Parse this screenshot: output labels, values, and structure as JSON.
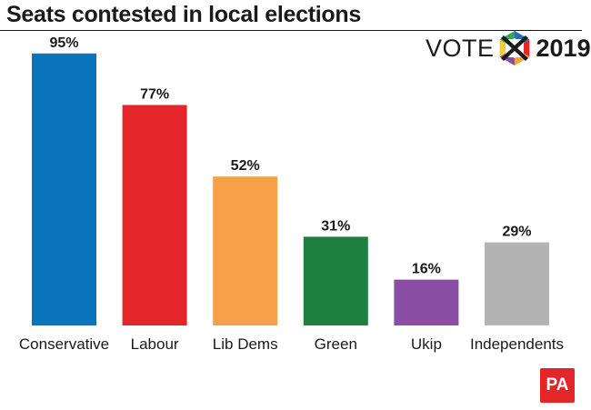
{
  "header": {
    "title": "Seats contested in local elections"
  },
  "logo": {
    "vote_word": "VOTE",
    "year": "2019",
    "mark_icon": "ballot-x-icon",
    "mark_colors": [
      "#2a6db5",
      "#e4262b",
      "#f7a239",
      "#8b4ca3",
      "#f0cf36",
      "#3aa655"
    ]
  },
  "chart_data": {
    "type": "bar",
    "title": "Seats contested in local elections",
    "xlabel": "",
    "ylabel": "",
    "ylim": [
      0,
      100
    ],
    "grid": false,
    "unit": "%",
    "categories": [
      "Conservative",
      "Labour",
      "Lib Dems",
      "Green",
      "Ukip",
      "Independents"
    ],
    "values": [
      95,
      77,
      52,
      31,
      16,
      29
    ],
    "value_labels": [
      "95%",
      "77%",
      "52%",
      "31%",
      "16%",
      "29%"
    ],
    "colors": [
      "#0a75bc",
      "#e4262b",
      "#f7a04a",
      "#1e8040",
      "#8a4fa5",
      "#b3b3b3"
    ]
  },
  "footer": {
    "credit": "PA"
  }
}
